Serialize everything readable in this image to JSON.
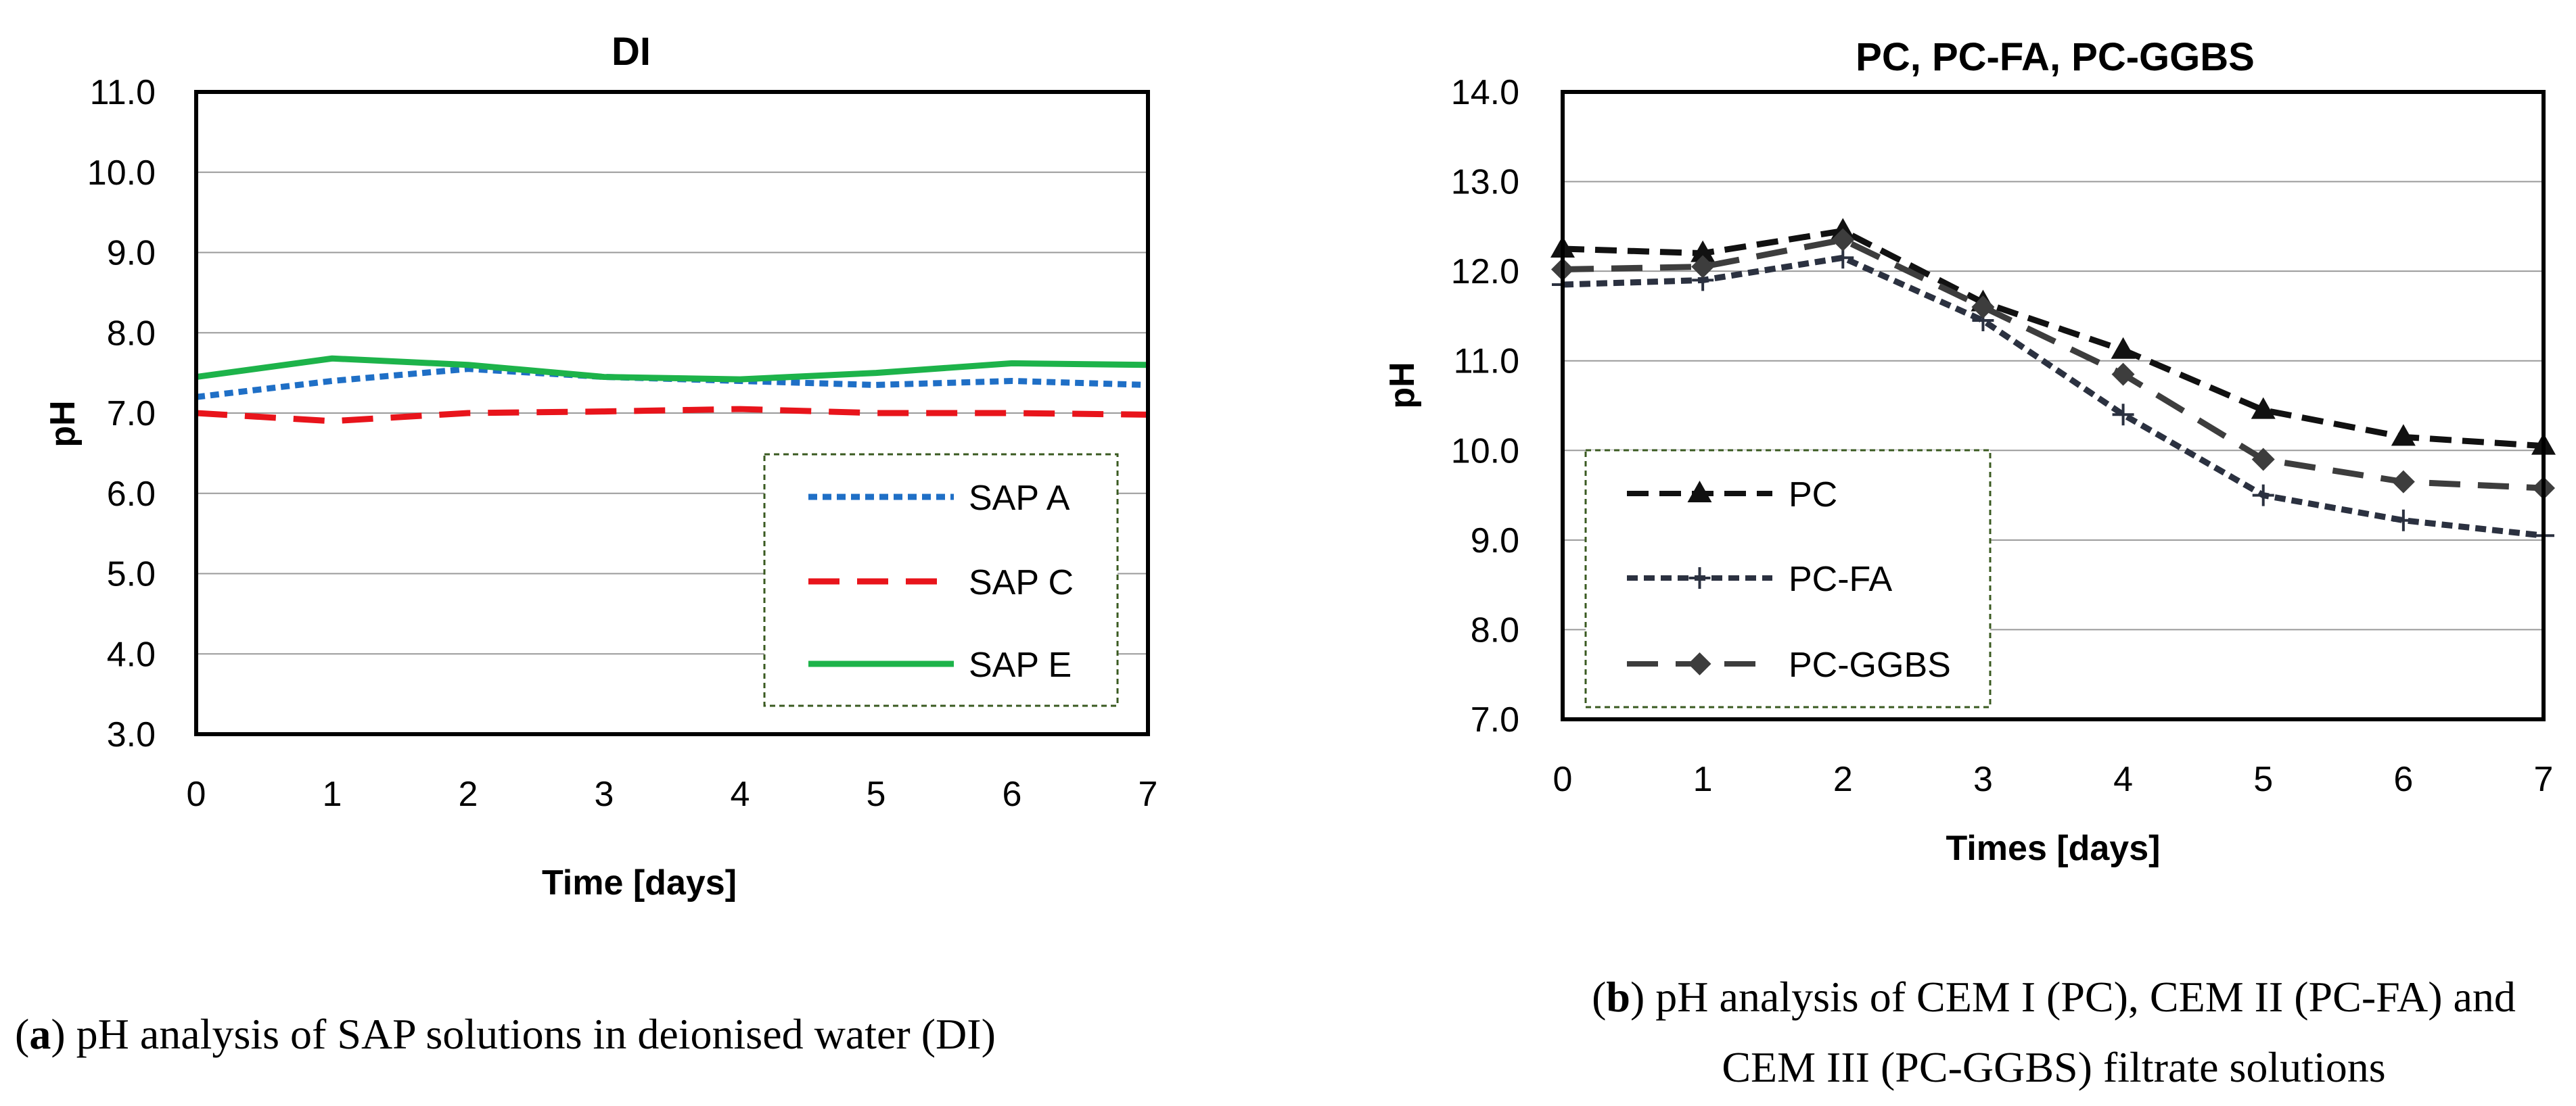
{
  "chart_data": [
    {
      "type": "line",
      "title": "DI",
      "xlabel": "Time [days]",
      "ylabel": "pH",
      "x": [
        0,
        1,
        2,
        3,
        4,
        5,
        6,
        7
      ],
      "xlim": [
        0,
        7
      ],
      "ylim": [
        3.0,
        11.0
      ],
      "ytick_step": 1.0,
      "grid": "horizontal",
      "legend_position": "bottom-right",
      "series": [
        {
          "name": "SAP A",
          "color": "#1f6fc6",
          "style": "dotted",
          "marker": "none",
          "values": [
            7.2,
            7.4,
            7.55,
            7.45,
            7.4,
            7.35,
            7.4,
            7.35
          ]
        },
        {
          "name": "SAP C",
          "color": "#e8141b",
          "style": "long-dash",
          "marker": "none",
          "values": [
            7.0,
            6.9,
            7.0,
            7.02,
            7.05,
            7.0,
            7.0,
            6.98
          ]
        },
        {
          "name": "SAP E",
          "color": "#1db34a",
          "style": "solid",
          "marker": "none",
          "values": [
            7.45,
            7.68,
            7.6,
            7.45,
            7.42,
            7.5,
            7.62,
            7.6
          ]
        }
      ],
      "caption_label": "a",
      "caption_text": ") pH analysis of SAP solutions in deionised water (DI)"
    },
    {
      "type": "line",
      "title": "PC, PC-FA, PC-GGBS",
      "xlabel": "Times [days]",
      "ylabel": "pH",
      "x": [
        0,
        1,
        2,
        3,
        4,
        5,
        6,
        7
      ],
      "xlim": [
        0,
        7
      ],
      "ylim": [
        7.0,
        14.0
      ],
      "ytick_step": 1.0,
      "grid": "horizontal",
      "legend_position": "bottom-left",
      "series": [
        {
          "name": "PC",
          "color": "#111111",
          "style": "dashed",
          "marker": "triangle",
          "values": [
            12.25,
            12.2,
            12.45,
            11.65,
            11.12,
            10.45,
            10.15,
            10.05
          ]
        },
        {
          "name": "PC-FA",
          "color": "#2b3140",
          "style": "short-dash",
          "marker": "plus",
          "values": [
            11.85,
            11.9,
            12.15,
            11.45,
            10.4,
            9.5,
            9.22,
            9.05
          ]
        },
        {
          "name": "PC-GGBS",
          "color": "#3d3d3d",
          "style": "long-dash",
          "marker": "diamond",
          "values": [
            12.02,
            12.05,
            12.35,
            11.6,
            10.85,
            9.9,
            9.65,
            9.58
          ]
        }
      ],
      "caption_label": "b",
      "caption_text_line1": ") pH analysis of CEM I (PC), CEM II (PC-FA) and",
      "caption_text_line2": "CEM III (PC-GGBS) filtrate solutions"
    }
  ]
}
